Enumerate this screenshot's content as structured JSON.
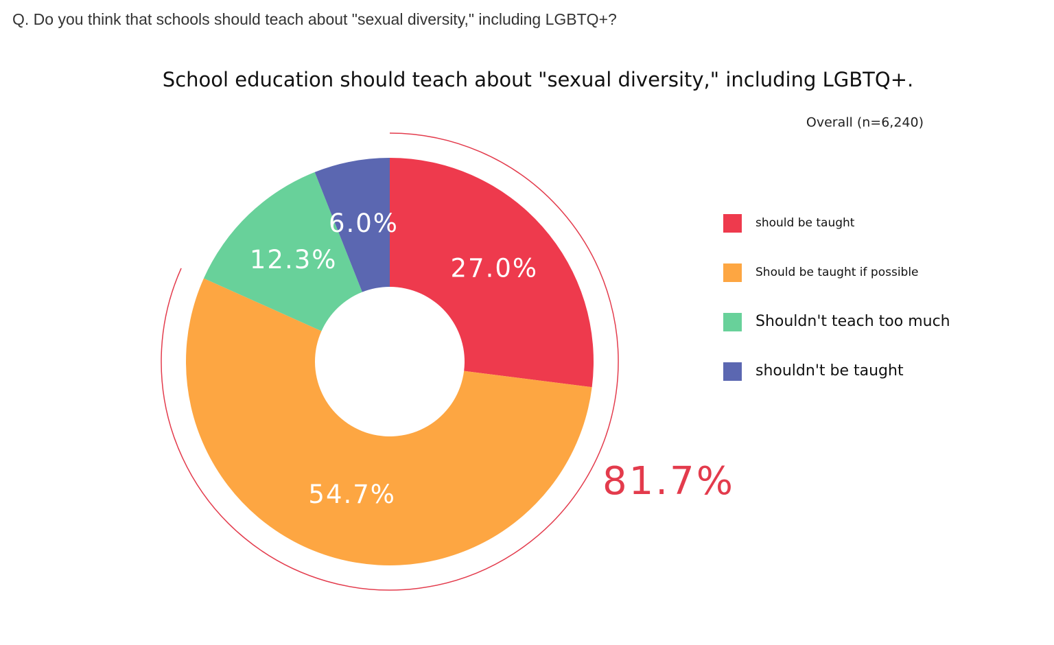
{
  "question": "Q. Do you think that schools should teach about \"sexual diversity,\" including LGBTQ+?",
  "chart_data": {
    "type": "donut",
    "title": "School education should teach about \"sexual diversity,\" including LGBTQ+.",
    "subtitle": "Overall (n=6,240)",
    "categories": [
      "should be taught",
      "Should be taught if possible",
      "Shouldn't teach too much",
      "shouldn't be taught"
    ],
    "values": [
      27.0,
      54.7,
      12.3,
      6.0
    ],
    "value_labels": [
      "27.0%",
      "54.7%",
      "12.3%",
      "6.0%"
    ],
    "colors": [
      "#ee3a4d",
      "#fda642",
      "#68d19a",
      "#5b67b1"
    ],
    "highlight": {
      "value": 81.7,
      "label": "81.7%",
      "color": "#e33b4c"
    },
    "legend": "right"
  }
}
